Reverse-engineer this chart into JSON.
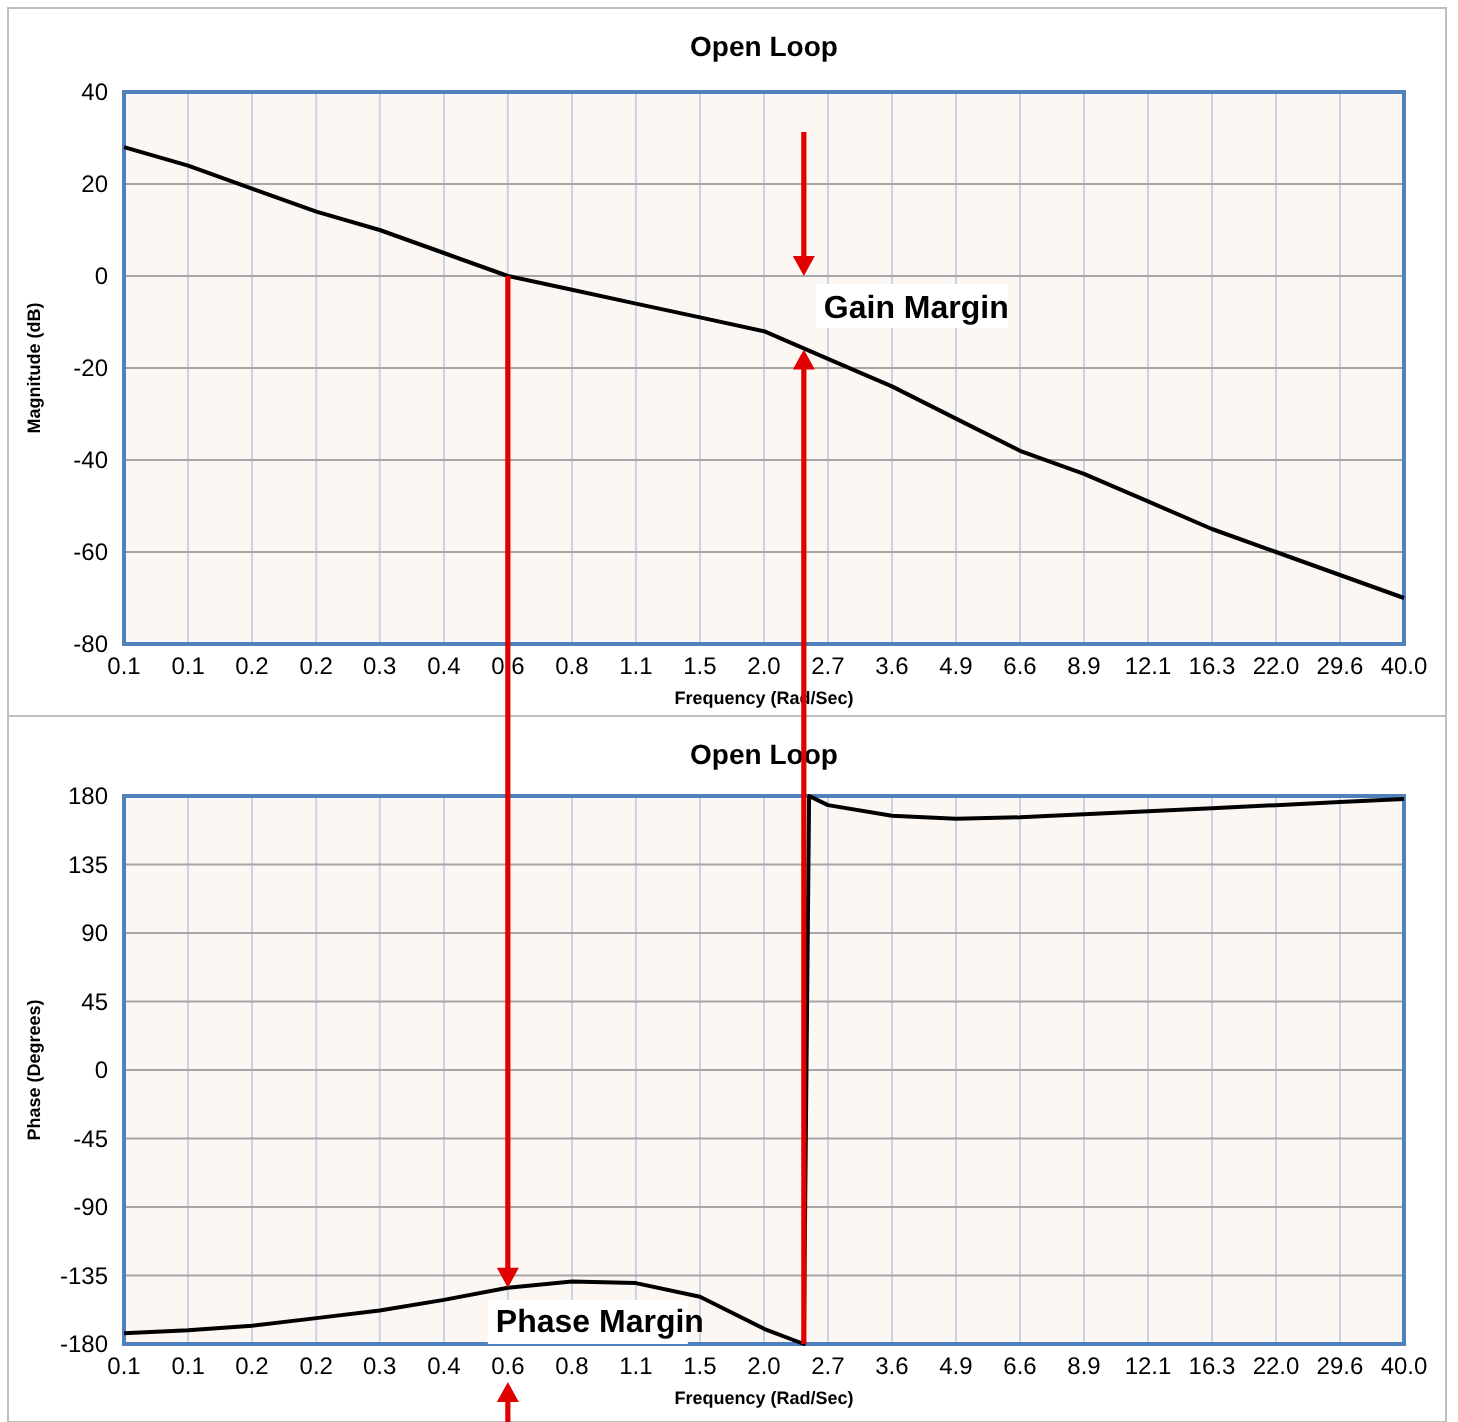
{
  "chart_data": [
    {
      "type": "line",
      "title": "Open Loop",
      "xlabel": "Frequency (Rad/Sec)",
      "ylabel": "Magnitude (dB)",
      "log": "x",
      "xlim": [
        0.1,
        40
      ],
      "xticks": [
        {
          "value": 0.1,
          "label": "0.1"
        },
        {
          "value": 0.135,
          "label": "0.1"
        },
        {
          "value": 0.182,
          "label": "0.2"
        },
        {
          "value": 0.246,
          "label": "0.2"
        },
        {
          "value": 0.331,
          "label": "0.3"
        },
        {
          "value": 0.447,
          "label": "0.4"
        },
        {
          "value": 0.603,
          "label": "0.6"
        },
        {
          "value": 0.814,
          "label": "0.8"
        },
        {
          "value": 1.098,
          "label": "1.1"
        },
        {
          "value": 1.482,
          "label": "1.5"
        },
        {
          "value": 2.0,
          "label": "2.0"
        },
        {
          "value": 2.698,
          "label": "2.7"
        },
        {
          "value": 3.64,
          "label": "3.6"
        },
        {
          "value": 4.912,
          "label": "4.9"
        },
        {
          "value": 6.628,
          "label": "6.6"
        },
        {
          "value": 8.944,
          "label": "8.9"
        },
        {
          "value": 12.07,
          "label": "12.1"
        },
        {
          "value": 16.28,
          "label": "16.3"
        },
        {
          "value": 21.97,
          "label": "22.0"
        },
        {
          "value": 29.64,
          "label": "29.6"
        },
        {
          "value": 40,
          "label": "40.0"
        }
      ],
      "ylim": [
        -80,
        40
      ],
      "yticks": [
        -80,
        -60,
        -40,
        -20,
        0,
        20,
        40
      ],
      "grid": true,
      "series": [
        {
          "color": "#000000",
          "x": [
            0.1,
            0.135,
            0.182,
            0.246,
            0.331,
            0.447,
            0.603,
            0.814,
            1.098,
            1.482,
            2.0,
            2.698,
            3.64,
            4.912,
            6.628,
            8.944,
            12.07,
            16.28,
            21.97,
            29.64,
            40
          ],
          "values": [
            28,
            24,
            19,
            14,
            10,
            5,
            0,
            -3,
            -6,
            -9,
            -12,
            -18,
            -24,
            -31,
            -38,
            -43,
            -49,
            -55,
            -60,
            -65,
            -70
          ]
        }
      ],
      "annotations": [
        {
          "text": "Gain Margin",
          "x": 2.41,
          "y": -16
        }
      ]
    },
    {
      "type": "line",
      "title": "Open Loop",
      "xlabel": "Frequency (Rad/Sec)",
      "ylabel": "Phase (Degrees)",
      "log": "x",
      "xlim": [
        0.1,
        40
      ],
      "xticks": [
        {
          "value": 0.1,
          "label": "0.1"
        },
        {
          "value": 0.135,
          "label": "0.1"
        },
        {
          "value": 0.182,
          "label": "0.2"
        },
        {
          "value": 0.246,
          "label": "0.2"
        },
        {
          "value": 0.331,
          "label": "0.3"
        },
        {
          "value": 0.447,
          "label": "0.4"
        },
        {
          "value": 0.603,
          "label": "0.6"
        },
        {
          "value": 0.814,
          "label": "0.8"
        },
        {
          "value": 1.098,
          "label": "1.1"
        },
        {
          "value": 1.482,
          "label": "1.5"
        },
        {
          "value": 2.0,
          "label": "2.0"
        },
        {
          "value": 2.698,
          "label": "2.7"
        },
        {
          "value": 3.64,
          "label": "3.6"
        },
        {
          "value": 4.912,
          "label": "4.9"
        },
        {
          "value": 6.628,
          "label": "6.6"
        },
        {
          "value": 8.944,
          "label": "8.9"
        },
        {
          "value": 12.07,
          "label": "12.1"
        },
        {
          "value": 16.28,
          "label": "16.3"
        },
        {
          "value": 21.97,
          "label": "22.0"
        },
        {
          "value": 29.64,
          "label": "29.6"
        },
        {
          "value": 40,
          "label": "40.0"
        }
      ],
      "ylim": [
        -180,
        180
      ],
      "yticks": [
        -180,
        -135,
        -90,
        -45,
        0,
        45,
        90,
        135,
        180
      ],
      "grid": true,
      "series": [
        {
          "color": "#000000",
          "x": [
            0.1,
            0.135,
            0.182,
            0.246,
            0.331,
            0.447,
            0.603,
            0.814,
            1.098,
            1.482,
            2.0,
            2.41,
            2.47,
            2.698,
            3.64,
            4.912,
            6.628,
            8.944,
            12.07,
            16.28,
            21.97,
            29.64,
            40
          ],
          "values": [
            -173,
            -171,
            -168,
            -163,
            -158,
            -151,
            -143,
            -139,
            -140,
            -149,
            -170,
            -180,
            180,
            174,
            167,
            165,
            166,
            168,
            170,
            172,
            174,
            176,
            178
          ]
        }
      ],
      "annotations": [
        {
          "text": "Phase Margin",
          "x": 0.603,
          "y": -143
        }
      ]
    }
  ]
}
